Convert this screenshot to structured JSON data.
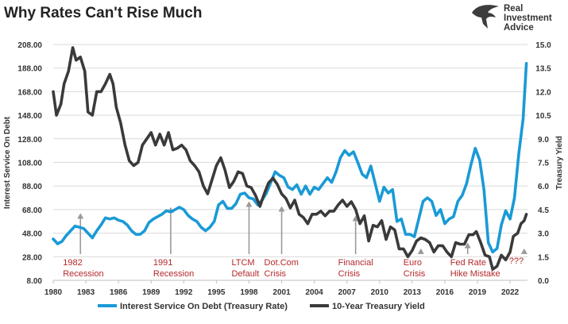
{
  "title": "Why Rates Can't Rise Much",
  "logo": {
    "icon": "eagle-icon",
    "lines": [
      "Real",
      "Investment",
      "Advice"
    ]
  },
  "chart_data": {
    "type": "line",
    "title": "Why Rates Can't Rise Much",
    "x_ticks": [
      "1980",
      "1983",
      "1986",
      "1989",
      "1992",
      "1995",
      "1998",
      "2001",
      "2004",
      "2007",
      "2010",
      "2013",
      "2016",
      "2019",
      "2022"
    ],
    "xlim": [
      1980,
      2023.6
    ],
    "left_axis": {
      "label": "Interest Service On Debt",
      "ylim": [
        8,
        208
      ],
      "ticks": [
        "8.00",
        "28.00",
        "48.00",
        "68.00",
        "88.00",
        "108.00",
        "128.00",
        "148.00",
        "168.00",
        "188.00",
        "208.00"
      ]
    },
    "right_axis": {
      "label": "Treasury Yield",
      "ylim": [
        0,
        15
      ],
      "ticks": [
        "0.0",
        "1.5",
        "3.0",
        "4.5",
        "6.0",
        "7.5",
        "9.0",
        "10.5",
        "12.0",
        "13.5",
        "15.0"
      ]
    },
    "grid": "horizontal",
    "legend_position": "bottom",
    "series": [
      {
        "name": "Interest Service On Debt (Treasury Rate)",
        "axis": "left",
        "color": "#1a9ad6",
        "points": [
          [
            1980,
            43
          ],
          [
            1980.4,
            39
          ],
          [
            1980.8,
            41
          ],
          [
            1981.2,
            46
          ],
          [
            1981.6,
            50
          ],
          [
            1982,
            54
          ],
          [
            1982.4,
            53
          ],
          [
            1982.8,
            52
          ],
          [
            1983.2,
            48
          ],
          [
            1983.6,
            44
          ],
          [
            1984,
            50
          ],
          [
            1984.4,
            55
          ],
          [
            1984.8,
            61
          ],
          [
            1985.2,
            60
          ],
          [
            1985.6,
            61
          ],
          [
            1986,
            59
          ],
          [
            1986.4,
            58
          ],
          [
            1986.8,
            55
          ],
          [
            1987.2,
            50
          ],
          [
            1987.6,
            47
          ],
          [
            1988,
            47
          ],
          [
            1988.4,
            50
          ],
          [
            1988.8,
            57
          ],
          [
            1989.2,
            60
          ],
          [
            1989.6,
            62
          ],
          [
            1990,
            64
          ],
          [
            1990.4,
            67
          ],
          [
            1990.8,
            66
          ],
          [
            1991.2,
            68
          ],
          [
            1991.6,
            70
          ],
          [
            1992,
            68
          ],
          [
            1992.4,
            63
          ],
          [
            1992.8,
            60
          ],
          [
            1993.2,
            58
          ],
          [
            1993.6,
            53
          ],
          [
            1994,
            50
          ],
          [
            1994.4,
            53
          ],
          [
            1994.8,
            58
          ],
          [
            1995.2,
            72
          ],
          [
            1995.6,
            75
          ],
          [
            1996,
            69
          ],
          [
            1996.4,
            69
          ],
          [
            1996.8,
            73
          ],
          [
            1997.2,
            81
          ],
          [
            1997.6,
            82
          ],
          [
            1998,
            78
          ],
          [
            1998.4,
            77
          ],
          [
            1998.8,
            72
          ],
          [
            1999.2,
            76
          ],
          [
            1999.6,
            82
          ],
          [
            2000,
            91
          ],
          [
            2000.4,
            100
          ],
          [
            2000.8,
            97
          ],
          [
            2001.2,
            95
          ],
          [
            2001.6,
            87
          ],
          [
            2002,
            85
          ],
          [
            2002.4,
            89
          ],
          [
            2002.8,
            81
          ],
          [
            2003.2,
            88
          ],
          [
            2003.6,
            81
          ],
          [
            2004,
            87
          ],
          [
            2004.4,
            85
          ],
          [
            2004.8,
            90
          ],
          [
            2005.2,
            95
          ],
          [
            2005.6,
            91
          ],
          [
            2006,
            100
          ],
          [
            2006.4,
            112
          ],
          [
            2006.8,
            118
          ],
          [
            2007.2,
            114
          ],
          [
            2007.6,
            117
          ],
          [
            2008,
            108
          ],
          [
            2008.4,
            98
          ],
          [
            2008.8,
            95
          ],
          [
            2009.2,
            105
          ],
          [
            2009.6,
            90
          ],
          [
            2010,
            75
          ],
          [
            2010.4,
            87
          ],
          [
            2010.8,
            82
          ],
          [
            2011.2,
            85
          ],
          [
            2011.6,
            58
          ],
          [
            2012,
            60
          ],
          [
            2012.4,
            47
          ],
          [
            2012.8,
            47
          ],
          [
            2013.2,
            45
          ],
          [
            2013.6,
            60
          ],
          [
            2014,
            75
          ],
          [
            2014.4,
            78
          ],
          [
            2014.8,
            75
          ],
          [
            2015.2,
            63
          ],
          [
            2015.6,
            68
          ],
          [
            2016,
            56
          ],
          [
            2016.4,
            60
          ],
          [
            2016.8,
            62
          ],
          [
            2017.2,
            75
          ],
          [
            2017.6,
            80
          ],
          [
            2018,
            90
          ],
          [
            2018.4,
            106
          ],
          [
            2018.8,
            120
          ],
          [
            2019.2,
            110
          ],
          [
            2019.6,
            85
          ],
          [
            2020,
            40
          ],
          [
            2020.4,
            32
          ],
          [
            2020.8,
            35
          ],
          [
            2021.2,
            55
          ],
          [
            2021.6,
            67
          ],
          [
            2022,
            60
          ],
          [
            2022.4,
            78
          ],
          [
            2022.8,
            115
          ],
          [
            2023.2,
            145
          ],
          [
            2023.5,
            192
          ]
        ]
      },
      {
        "name": "10-Year Treasury Yield",
        "axis": "right",
        "color": "#3a3a3a",
        "points": [
          [
            1980,
            12
          ],
          [
            1980.3,
            10.5
          ],
          [
            1980.7,
            11.2
          ],
          [
            1981,
            12.5
          ],
          [
            1981.4,
            13.3
          ],
          [
            1981.8,
            14.8
          ],
          [
            1982.1,
            14.0
          ],
          [
            1982.5,
            14.2
          ],
          [
            1982.9,
            13.3
          ],
          [
            1983.2,
            10.7
          ],
          [
            1983.6,
            10.5
          ],
          [
            1984,
            12.0
          ],
          [
            1984.4,
            12.0
          ],
          [
            1984.8,
            12.5
          ],
          [
            1985.2,
            13.1
          ],
          [
            1985.5,
            12.5
          ],
          [
            1985.8,
            11.0
          ],
          [
            1986.2,
            10.0
          ],
          [
            1986.6,
            8.6
          ],
          [
            1987,
            7.6
          ],
          [
            1987.4,
            7.3
          ],
          [
            1987.8,
            7.5
          ],
          [
            1988.2,
            8.6
          ],
          [
            1988.6,
            9.0
          ],
          [
            1989,
            9.4
          ],
          [
            1989.4,
            8.6
          ],
          [
            1989.8,
            9.3
          ],
          [
            1990.2,
            8.6
          ],
          [
            1990.6,
            9.4
          ],
          [
            1991,
            8.3
          ],
          [
            1991.4,
            8.4
          ],
          [
            1991.8,
            8.6
          ],
          [
            1992.2,
            8.3
          ],
          [
            1992.6,
            7.6
          ],
          [
            1993,
            7.3
          ],
          [
            1993.4,
            6.9
          ],
          [
            1993.8,
            6.0
          ],
          [
            1994.2,
            5.5
          ],
          [
            1994.6,
            6.4
          ],
          [
            1995,
            7.3
          ],
          [
            1995.4,
            7.8
          ],
          [
            1995.8,
            7.0
          ],
          [
            1996.2,
            5.9
          ],
          [
            1996.6,
            6.3
          ],
          [
            1997,
            6.9
          ],
          [
            1997.4,
            6.8
          ],
          [
            1997.8,
            6.0
          ],
          [
            1998.2,
            5.9
          ],
          [
            1998.6,
            5.4
          ],
          [
            1999,
            4.7
          ],
          [
            1999.4,
            5.5
          ],
          [
            1999.8,
            6.2
          ],
          [
            2000.2,
            6.5
          ],
          [
            2000.6,
            6.1
          ],
          [
            2001,
            5.5
          ],
          [
            2001.4,
            5.2
          ],
          [
            2001.8,
            4.6
          ],
          [
            2002.2,
            5.1
          ],
          [
            2002.6,
            4.2
          ],
          [
            2003,
            4.0
          ],
          [
            2003.4,
            3.6
          ],
          [
            2003.8,
            4.2
          ],
          [
            2004.2,
            4.2
          ],
          [
            2004.6,
            4.4
          ],
          [
            2005,
            4.1
          ],
          [
            2005.4,
            4.4
          ],
          [
            2005.8,
            4.4
          ],
          [
            2006.2,
            4.8
          ],
          [
            2006.6,
            5.1
          ],
          [
            2007,
            4.7
          ],
          [
            2007.4,
            5.0
          ],
          [
            2007.8,
            4.5
          ],
          [
            2008.2,
            3.6
          ],
          [
            2008.6,
            4.1
          ],
          [
            2009,
            2.5
          ],
          [
            2009.4,
            3.5
          ],
          [
            2009.8,
            3.4
          ],
          [
            2010.2,
            3.8
          ],
          [
            2010.6,
            2.6
          ],
          [
            2011,
            3.4
          ],
          [
            2011.4,
            3.2
          ],
          [
            2011.8,
            2.0
          ],
          [
            2012.2,
            2.0
          ],
          [
            2012.6,
            1.5
          ],
          [
            2013,
            1.9
          ],
          [
            2013.4,
            2.5
          ],
          [
            2013.8,
            2.7
          ],
          [
            2014.2,
            2.6
          ],
          [
            2014.6,
            2.4
          ],
          [
            2015,
            1.8
          ],
          [
            2015.4,
            2.2
          ],
          [
            2015.8,
            2.2
          ],
          [
            2016.2,
            1.8
          ],
          [
            2016.6,
            1.5
          ],
          [
            2017,
            2.4
          ],
          [
            2017.4,
            2.3
          ],
          [
            2017.8,
            2.3
          ],
          [
            2018.2,
            2.9
          ],
          [
            2018.6,
            2.9
          ],
          [
            2018.9,
            3.1
          ],
          [
            2019.3,
            2.4
          ],
          [
            2019.7,
            1.6
          ],
          [
            2020.1,
            1.5
          ],
          [
            2020.4,
            0.7
          ],
          [
            2020.8,
            0.9
          ],
          [
            2021.2,
            1.6
          ],
          [
            2021.6,
            1.3
          ],
          [
            2022,
            1.8
          ],
          [
            2022.3,
            2.8
          ],
          [
            2022.7,
            3.0
          ],
          [
            2023,
            3.6
          ],
          [
            2023.3,
            3.8
          ],
          [
            2023.5,
            4.2
          ]
        ]
      }
    ],
    "annotations": [
      {
        "lines": [
          "1982",
          "Recession"
        ],
        "year": 1982.5,
        "level": 65
      },
      {
        "lines": [
          "1991",
          "Recession"
        ],
        "year": 1990.8,
        "level": 70
      },
      {
        "lines": [
          "LTCM",
          "Default"
        ],
        "year": 1998,
        "level": 75
      },
      {
        "lines": [
          "Dot.Com",
          "Crisis"
        ],
        "year": 2001,
        "level": 71
      },
      {
        "lines": [
          "Financial",
          "Crisis"
        ],
        "year": 2007.8,
        "level": 63
      },
      {
        "lines": [
          "Euro",
          "Crisis"
        ],
        "year": 2013.8,
        "level": 35
      },
      {
        "lines": [
          "Fed Rate",
          "Hike Mistake"
        ],
        "year": 2018.1,
        "level": 40
      },
      {
        "lines": [
          "???"
        ],
        "year": 2023.3,
        "level": 35
      }
    ]
  }
}
